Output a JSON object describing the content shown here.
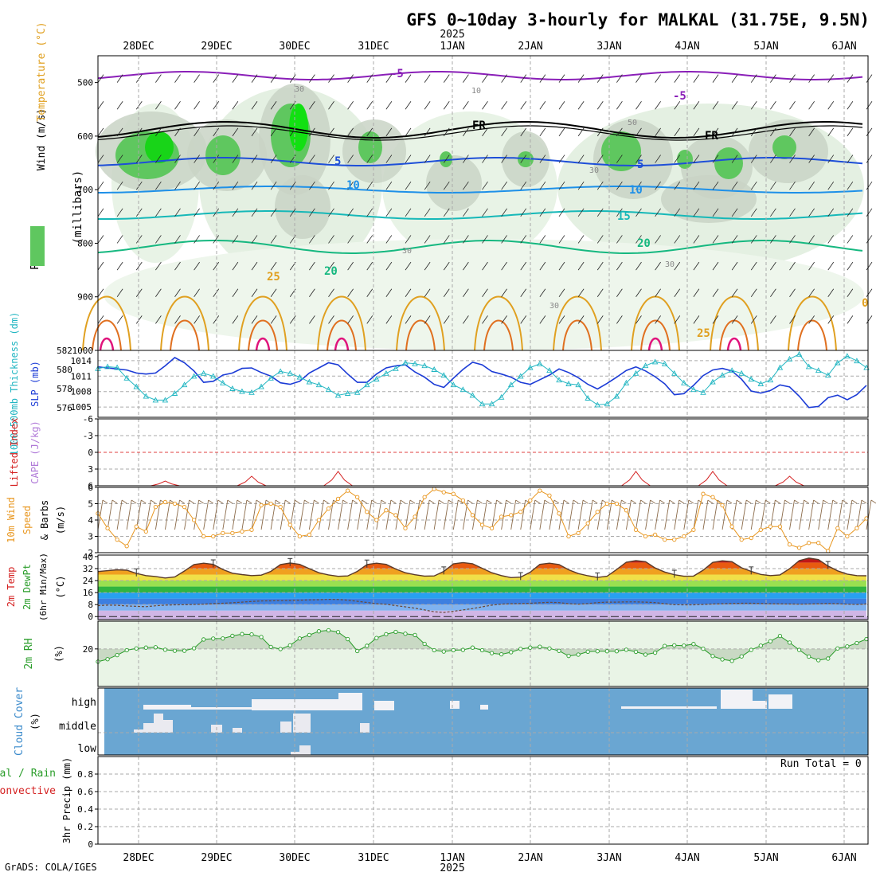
{
  "title": "GFS 0~10day 3-hourly for MALKAL (31.75E, 9.5N)",
  "year_label": "2025",
  "credit": "GrADS: COLA/IGES",
  "run_total": "Run Total = 0",
  "days": [
    "28DEC",
    "29DEC",
    "30DEC",
    "31DEC",
    "1JAN",
    "2JAN",
    "3JAN",
    "4JAN",
    "5JAN",
    "6JAN"
  ],
  "colors": {
    "temp_minus5": "#8a1fb8",
    "temp_fr": "#000000",
    "temp_5": "#1e4fd8",
    "temp_10": "#1e90e8",
    "temp_15": "#16b8b8",
    "temp_20": "#16b880",
    "temp_25": "#e0a020",
    "temp_30": "#e07020",
    "temp_35": "#e0147c",
    "slp": "#1b3bd6",
    "thickness": "#22b6c2",
    "wind10m": "#e8961e",
    "lifted_index": "#d42020",
    "rh2m": "#2a9d2a",
    "cloud": "#6aa6d2"
  },
  "panels": {
    "upper": {
      "ylabel_wind": "Wind (m/s)",
      "ylabel_temp": "Temperature (°C)",
      "ylabel_rh": "RH (%)",
      "ylabel_units": "(millibars)",
      "levels": [
        "500",
        "600",
        "700",
        "800",
        "900",
        "1000"
      ],
      "contour_labels": [
        "-5",
        "-5",
        "FR",
        "FR",
        "5",
        "5",
        "10",
        "10",
        "15",
        "20",
        "20",
        "25",
        "25",
        "10",
        "30",
        "30",
        "30",
        "30",
        "50",
        "30",
        "0"
      ]
    },
    "slp": {
      "ylabel_left": "1000-500mb Thickness (dm)",
      "ylabel_right": "SLP (mb)",
      "left_ticks": [
        "582",
        "580",
        "578",
        "576"
      ],
      "right_ticks": [
        "1014",
        "1011",
        "1008",
        "1005"
      ]
    },
    "cape": {
      "ylabel_left": "Lifted Index",
      "ylabel_right": "CAPE (J/kg)",
      "ticks": [
        "-6",
        "-3",
        "0",
        "3",
        "6"
      ]
    },
    "wind": {
      "ylabel1": "10m Wind",
      "ylabel2": "Speed",
      "ylabel3": "& Barbs",
      "ylabel4": "(m/s)",
      "ticks": [
        "6",
        "5",
        "4",
        "3",
        "2"
      ]
    },
    "temp": {
      "ylabel1": "2m Temp",
      "ylabel2": "2m DewPt",
      "ylabel3": "(6hr Min/Max)",
      "ylabel4": "(°C)",
      "ticks": [
        "40",
        "32",
        "24",
        "16",
        "8",
        "0"
      ]
    },
    "rh": {
      "ylabel1": "2m RH",
      "ylabel2": "(%)",
      "ticks": [
        "20"
      ]
    },
    "cloud": {
      "ylabel1": "Cloud Cover",
      "ylabel2": "(%)",
      "levels": [
        "high",
        "middle",
        "low"
      ]
    },
    "precip": {
      "ylabel1": "Total / Rain",
      "ylabel2": "Convective",
      "ylabel3": "3hr Precip (mm)",
      "ticks": [
        "0.8",
        "0.6",
        "0.4",
        "0.2",
        "0"
      ]
    }
  },
  "chart_data": {
    "type": "line",
    "x_unit": "3-hourly steps (81 steps, 27 Dec 21Z to 6 Jan 21Z)",
    "series": [
      {
        "name": "SLP",
        "unit": "mb",
        "values": [
          1012.8,
          1012.6,
          1012.4,
          1012.2,
          1011.6,
          1011.4,
          1011.6,
          1013.0,
          1014.6,
          1013.6,
          1012.0,
          1009.8,
          1010.0,
          1011.2,
          1011.6,
          1012.5,
          1012.6,
          1011.7,
          1011.0,
          1009.7,
          1009.4,
          1010.0,
          1011.6,
          1012.6,
          1013.6,
          1013.2,
          1011.4,
          1009.8,
          1009.8,
          1011.4,
          1012.6,
          1013.0,
          1013.2,
          1011.8,
          1010.8,
          1009.4,
          1008.8,
          1010.6,
          1012.3,
          1013.7,
          1013.2,
          1011.9,
          1011.4,
          1010.8,
          1009.8,
          1009.4,
          1010.3,
          1011.2,
          1012.4,
          1011.7,
          1010.7,
          1009.4,
          1008.5,
          1009.6,
          1010.8,
          1012.1,
          1012.8,
          1012.0,
          1010.9,
          1009.5,
          1007.4,
          1007.6,
          1009.2,
          1011.1,
          1012.2,
          1012.5,
          1012.0,
          1010.4,
          1008.1,
          1007.7,
          1008.2,
          1009.3,
          1008.9,
          1007.1,
          1004.9,
          1005.1,
          1006.8,
          1007.3,
          1006.4,
          1007.4,
          1009.2
        ]
      },
      {
        "name": "1000-500mb Thickness",
        "unit": "dm",
        "values": [
          580.1,
          580.3,
          580.2,
          579.1,
          578.2,
          577.2,
          576.8,
          576.8,
          577.5,
          578.4,
          579.3,
          579.6,
          579.3,
          578.6,
          578.0,
          577.7,
          577.6,
          578.2,
          579.1,
          579.8,
          579.6,
          579.2,
          578.7,
          578.4,
          577.9,
          577.3,
          577.5,
          577.6,
          578.4,
          579.0,
          579.6,
          580.1,
          580.7,
          580.6,
          580.4,
          580.0,
          579.4,
          578.4,
          577.9,
          577.3,
          576.4,
          576.4,
          577.1,
          578.4,
          579.3,
          580.2,
          580.6,
          579.9,
          578.9,
          578.5,
          578.4,
          577.0,
          576.3,
          576.4,
          577.2,
          578.6,
          579.6,
          580.4,
          580.8,
          580.6,
          579.6,
          578.6,
          577.9,
          577.6,
          578.7,
          579.4,
          579.9,
          579.6,
          579.0,
          578.5,
          578.9,
          580.2,
          581.1,
          581.6,
          580.3,
          579.9,
          579.4,
          580.7,
          581.4,
          580.9,
          580.2
        ]
      },
      {
        "name": "10m Wind Speed",
        "unit": "m/s",
        "values": [
          4.4,
          3.5,
          2.8,
          2.4,
          3.6,
          3.3,
          4.8,
          5.1,
          5.0,
          4.8,
          4.0,
          3.0,
          3.0,
          3.2,
          3.2,
          3.3,
          3.4,
          4.9,
          5.0,
          4.8,
          3.7,
          3.0,
          3.1,
          4.0,
          4.7,
          5.3,
          5.8,
          5.4,
          4.5,
          4.0,
          4.6,
          4.3,
          3.5,
          4.2,
          5.4,
          5.9,
          5.7,
          5.6,
          5.2,
          4.3,
          3.7,
          3.5,
          4.2,
          4.3,
          4.5,
          5.2,
          5.8,
          5.5,
          4.4,
          3.0,
          3.2,
          3.8,
          4.5,
          5.0,
          5.0,
          4.6,
          3.4,
          3.0,
          3.1,
          2.8,
          2.8,
          3.0,
          3.4,
          5.6,
          5.4,
          4.9,
          3.6,
          2.8,
          2.9,
          3.4,
          3.6,
          3.6,
          2.5,
          2.3,
          2.6,
          2.6,
          2.1,
          3.5,
          3.0,
          3.5,
          4.1
        ]
      },
      {
        "name": "2m Temp",
        "unit": "°C",
        "values": [
          30.0,
          30.6,
          31.2,
          30.9,
          28.8,
          27.3,
          26.7,
          25.7,
          26.4,
          30.4,
          34.7,
          35.6,
          34.8,
          31.4,
          28.9,
          28.0,
          27.3,
          27.6,
          30.1,
          34.7,
          35.7,
          34.8,
          31.9,
          29.2,
          27.8,
          26.8,
          27.1,
          30.1,
          34.7,
          35.6,
          34.8,
          31.7,
          29.2,
          27.9,
          27.0,
          27.1,
          30.1,
          35.1,
          36.0,
          35.2,
          32.2,
          29.2,
          27.3,
          26.0,
          26.3,
          29.6,
          34.8,
          35.6,
          34.7,
          31.2,
          28.7,
          27.2,
          26.1,
          26.9,
          31.4,
          36.2,
          37.3,
          36.6,
          32.4,
          29.7,
          27.9,
          26.9,
          27.0,
          30.9,
          36.1,
          37.2,
          36.6,
          32.5,
          30.1,
          28.1,
          27.3,
          27.8,
          31.9,
          37.3,
          39.0,
          38.0,
          33.7,
          30.5,
          28.3,
          27.3,
          27.2
        ]
      },
      {
        "name": "2m Dewpoint",
        "unit": "°C",
        "values": [
          7.3,
          7.6,
          7.5,
          7.1,
          6.8,
          6.6,
          7.2,
          7.6,
          7.8,
          7.9,
          8.1,
          8.3,
          8.6,
          8.9,
          9.2,
          9.6,
          10.1,
          10.4,
          10.5,
          10.6,
          10.7,
          10.9,
          11.1,
          11.2,
          11.5,
          11.4,
          10.9,
          10.2,
          9.4,
          8.6,
          8.2,
          7.3,
          6.5,
          5.6,
          4.4,
          3.2,
          2.7,
          3.5,
          4.4,
          5.3,
          6.5,
          7.6,
          8.3,
          8.6,
          8.7,
          8.9,
          9.2,
          9.5,
          9.3,
          8.6,
          8.3,
          8.7,
          9.3,
          9.6,
          9.6,
          9.8,
          9.8,
          9.6,
          9.3,
          8.6,
          7.9,
          7.8,
          7.8,
          8.1,
          8.4,
          8.6,
          8.8,
          8.9,
          8.9,
          8.8,
          8.6,
          8.5,
          8.4,
          8.3,
          8.4,
          8.6,
          8.8,
          8.6,
          8.3,
          8.1,
          8.4
        ]
      },
      {
        "name": "2m RH",
        "unit": "%",
        "values": [
          12.2,
          13.7,
          16.2,
          19.2,
          20.3,
          20.8,
          21.0,
          19.5,
          18.9,
          18.9,
          20.4,
          25.8,
          26.3,
          26.4,
          28.0,
          29.1,
          28.9,
          27.3,
          21.2,
          19.9,
          22.2,
          26.4,
          28.5,
          30.8,
          31.4,
          30.3,
          26.0,
          18.7,
          21.9,
          26.7,
          29.0,
          30.4,
          29.3,
          28.5,
          23.1,
          19.2,
          18.4,
          19.2,
          19.4,
          20.8,
          19.2,
          17.4,
          16.7,
          18.0,
          20.0,
          20.8,
          21.3,
          20.3,
          18.8,
          15.7,
          16.5,
          18.3,
          18.6,
          18.6,
          18.6,
          19.5,
          18.2,
          16.5,
          17.7,
          21.8,
          22.2,
          22.0,
          23.0,
          20.1,
          15.6,
          13.6,
          12.7,
          15.4,
          19.4,
          22.0,
          24.7,
          27.9,
          23.9,
          19.4,
          15.3,
          13.1,
          14.1,
          20.3,
          21.5,
          23.6,
          26.0
        ]
      }
    ],
    "lifted_index_positive_bumps": "small peaks near 28 Dec 12Z, 29 Dec 15Z, 30 Dec 15Z, 3 Jan 15Z, 4 Jan 15Z, 5 Jan 15Z",
    "axis_ranges": {
      "upper_pressure_mb": [
        450,
        1000
      ],
      "thickness_dm": [
        575,
        582
      ],
      "slp_mb": [
        1003,
        1016
      ],
      "lifted_index": [
        -6,
        6
      ],
      "wind_speed_ms": [
        2,
        6
      ],
      "temp_c": [
        -2,
        41
      ],
      "precip_mm": [
        0,
        1
      ]
    },
    "grid": true
  }
}
